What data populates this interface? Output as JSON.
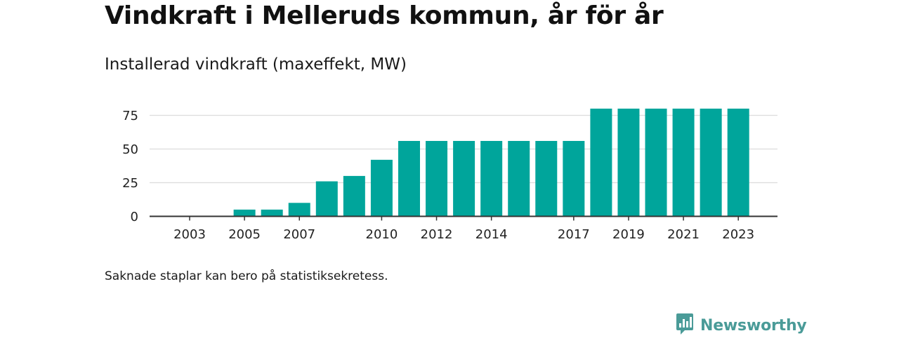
{
  "header": {
    "title": "Vindkraft i Melleruds kommun, år för år",
    "subtitle": "Installerad vindkraft (maxeffekt, MW)"
  },
  "footer": {
    "note": "Saknade staplar kan bero på statistiksekretess.",
    "brand": "Newsworthy",
    "brand_icon": "newsworthy-logo-icon"
  },
  "colors": {
    "bar": "#00a59b",
    "grid": "#dcdcdc",
    "axis": "#333333",
    "brand": "#4a9b98"
  },
  "chart_data": {
    "type": "bar",
    "title": "Installerad vindkraft (maxeffekt, MW)",
    "xlabel": "",
    "ylabel": "",
    "categories": [
      "2003",
      "2004",
      "2005",
      "2006",
      "2007",
      "2008",
      "2009",
      "2010",
      "2011",
      "2012",
      "2013",
      "2014",
      "2015",
      "2016",
      "2017",
      "2018",
      "2019",
      "2020",
      "2021",
      "2022",
      "2023"
    ],
    "values": [
      0,
      0,
      5,
      5,
      10,
      26,
      30,
      42,
      56,
      56,
      56,
      56,
      56,
      56,
      56,
      80,
      80,
      80,
      80,
      80,
      80
    ],
    "x_tick_labels": [
      "2003",
      "2005",
      "2007",
      "2010",
      "2012",
      "2014",
      "2017",
      "2019",
      "2021",
      "2023"
    ],
    "y_ticks": [
      0,
      25,
      50,
      75
    ],
    "ylim": [
      0,
      80
    ],
    "grid": true
  }
}
